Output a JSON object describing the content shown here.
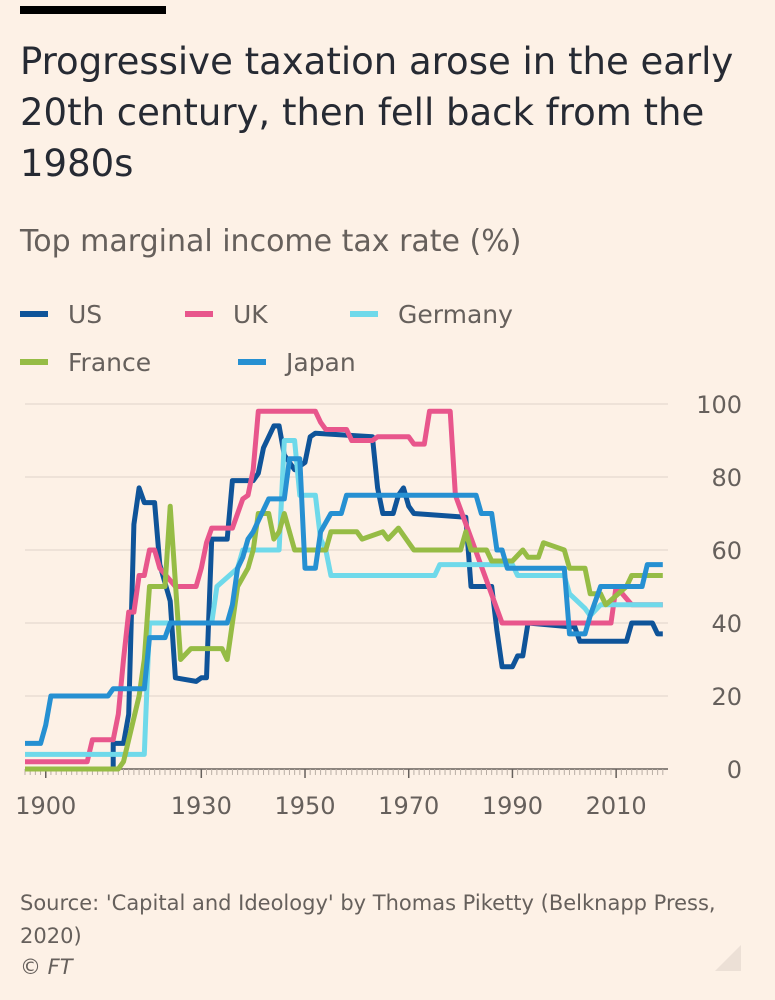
{
  "header": {
    "title": "Progressive taxation arose in the early 20th century, then fell back from the 1980s",
    "subtitle": "Top marginal income tax rate (%)"
  },
  "legend": [
    {
      "name": "US",
      "color": "#0f5499"
    },
    {
      "name": "UK",
      "color": "#e8568c"
    },
    {
      "name": "Germany",
      "color": "#6fd9ea"
    },
    {
      "name": "France",
      "color": "#96bc45"
    },
    {
      "name": "Japan",
      "color": "#2690d2"
    }
  ],
  "footer": {
    "source": "Source: 'Capital and Ideology' by Thomas Piketty (Belknapp Press, 2020)",
    "copyright": "© FT"
  },
  "chart_data": {
    "type": "line",
    "title": "Top marginal income tax rate (%)",
    "xlabel": "",
    "ylabel": "",
    "xlim": [
      1896,
      2020
    ],
    "ylim": [
      0,
      100
    ],
    "x_ticks": [
      1900,
      1930,
      1950,
      1970,
      1990,
      2010
    ],
    "y_ticks": [
      0,
      20,
      40,
      60,
      80,
      100
    ],
    "grid": true,
    "y_axis_side": "right",
    "series": [
      {
        "name": "US",
        "color": "#0f5499",
        "points": [
          [
            1896,
            0
          ],
          [
            1913,
            0
          ],
          [
            1913,
            7
          ],
          [
            1915,
            7
          ],
          [
            1916,
            15
          ],
          [
            1917,
            67
          ],
          [
            1918,
            77
          ],
          [
            1919,
            73
          ],
          [
            1921,
            73
          ],
          [
            1922,
            56
          ],
          [
            1924,
            46
          ],
          [
            1925,
            25
          ],
          [
            1929,
            24
          ],
          [
            1930,
            25
          ],
          [
            1931,
            25
          ],
          [
            1932,
            63
          ],
          [
            1935,
            63
          ],
          [
            1936,
            79
          ],
          [
            1940,
            79
          ],
          [
            1941,
            81
          ],
          [
            1942,
            88
          ],
          [
            1944,
            94
          ],
          [
            1945,
            94
          ],
          [
            1946,
            86
          ],
          [
            1948,
            82
          ],
          [
            1950,
            84
          ],
          [
            1951,
            91
          ],
          [
            1952,
            92
          ],
          [
            1963,
            91
          ],
          [
            1964,
            77
          ],
          [
            1965,
            70
          ],
          [
            1967,
            70
          ],
          [
            1968,
            75
          ],
          [
            1969,
            77
          ],
          [
            1970,
            72
          ],
          [
            1971,
            70
          ],
          [
            1981,
            69
          ],
          [
            1982,
            50
          ],
          [
            1986,
            50
          ],
          [
            1987,
            38
          ],
          [
            1988,
            28
          ],
          [
            1990,
            28
          ],
          [
            1991,
            31
          ],
          [
            1992,
            31
          ],
          [
            1993,
            40
          ],
          [
            2001,
            39
          ],
          [
            2002,
            39
          ],
          [
            2003,
            35
          ],
          [
            2012,
            35
          ],
          [
            2013,
            40
          ],
          [
            2017,
            40
          ],
          [
            2018,
            37
          ],
          [
            2019,
            37
          ]
        ]
      },
      {
        "name": "UK",
        "color": "#e8568c",
        "points": [
          [
            1896,
            2
          ],
          [
            1908,
            2
          ],
          [
            1909,
            8
          ],
          [
            1913,
            8
          ],
          [
            1914,
            15
          ],
          [
            1915,
            30
          ],
          [
            1916,
            43
          ],
          [
            1917,
            43
          ],
          [
            1918,
            53
          ],
          [
            1919,
            53
          ],
          [
            1920,
            60
          ],
          [
            1921,
            60
          ],
          [
            1922,
            55
          ],
          [
            1925,
            50
          ],
          [
            1929,
            50
          ],
          [
            1930,
            55
          ],
          [
            1931,
            62
          ],
          [
            1932,
            66
          ],
          [
            1936,
            66
          ],
          [
            1937,
            70
          ],
          [
            1938,
            74
          ],
          [
            1939,
            75
          ],
          [
            1940,
            82
          ],
          [
            1941,
            98
          ],
          [
            1952,
            98
          ],
          [
            1953,
            95
          ],
          [
            1954,
            93
          ],
          [
            1958,
            93
          ],
          [
            1959,
            90
          ],
          [
            1963,
            90
          ],
          [
            1964,
            91
          ],
          [
            1970,
            91
          ],
          [
            1971,
            89
          ],
          [
            1973,
            89
          ],
          [
            1974,
            98
          ],
          [
            1978,
            98
          ],
          [
            1979,
            75
          ],
          [
            1988,
            40
          ],
          [
            2009,
            40
          ],
          [
            2010,
            50
          ],
          [
            2013,
            45
          ],
          [
            2019,
            45
          ]
        ]
      },
      {
        "name": "Germany",
        "color": "#6fd9ea",
        "points": [
          [
            1896,
            4
          ],
          [
            1914,
            4
          ],
          [
            1915,
            4
          ],
          [
            1919,
            4
          ],
          [
            1920,
            40
          ],
          [
            1932,
            40
          ],
          [
            1933,
            50
          ],
          [
            1937,
            55
          ],
          [
            1938,
            60
          ],
          [
            1945,
            60
          ],
          [
            1946,
            90
          ],
          [
            1948,
            90
          ],
          [
            1949,
            75
          ],
          [
            1952,
            75
          ],
          [
            1953,
            63
          ],
          [
            1954,
            60
          ],
          [
            1955,
            53
          ],
          [
            1975,
            53
          ],
          [
            1976,
            56
          ],
          [
            1990,
            56
          ],
          [
            1991,
            53
          ],
          [
            2000,
            53
          ],
          [
            2001,
            48
          ],
          [
            2004,
            44
          ],
          [
            2005,
            42
          ],
          [
            2007,
            45
          ],
          [
            2019,
            45
          ]
        ]
      },
      {
        "name": "France",
        "color": "#96bc45",
        "points": [
          [
            1896,
            0
          ],
          [
            1914,
            0
          ],
          [
            1915,
            2
          ],
          [
            1918,
            20
          ],
          [
            1919,
            30
          ],
          [
            1920,
            50
          ],
          [
            1923,
            50
          ],
          [
            1924,
            72
          ],
          [
            1926,
            30
          ],
          [
            1928,
            33
          ],
          [
            1934,
            33
          ],
          [
            1935,
            30
          ],
          [
            1936,
            40
          ],
          [
            1937,
            50
          ],
          [
            1939,
            55
          ],
          [
            1940,
            60
          ],
          [
            1941,
            70
          ],
          [
            1943,
            70
          ],
          [
            1944,
            63
          ],
          [
            1945,
            65
          ],
          [
            1946,
            70
          ],
          [
            1948,
            60
          ],
          [
            1954,
            60
          ],
          [
            1955,
            65
          ],
          [
            1960,
            65
          ],
          [
            1961,
            63
          ],
          [
            1965,
            65
          ],
          [
            1966,
            63
          ],
          [
            1968,
            66
          ],
          [
            1970,
            62
          ],
          [
            1971,
            60
          ],
          [
            1980,
            60
          ],
          [
            1981,
            65
          ],
          [
            1982,
            60
          ],
          [
            1985,
            60
          ],
          [
            1986,
            57
          ],
          [
            1990,
            57
          ],
          [
            1992,
            60
          ],
          [
            1993,
            58
          ],
          [
            1995,
            58
          ],
          [
            1996,
            62
          ],
          [
            1998,
            61
          ],
          [
            2000,
            60
          ],
          [
            2001,
            55
          ],
          [
            2004,
            55
          ],
          [
            2005,
            48
          ],
          [
            2007,
            48
          ],
          [
            2008,
            45
          ],
          [
            2012,
            50
          ],
          [
            2013,
            53
          ],
          [
            2019,
            53
          ]
        ]
      },
      {
        "name": "Japan",
        "color": "#2690d2",
        "points": [
          [
            1896,
            7
          ],
          [
            1899,
            7
          ],
          [
            1900,
            12
          ],
          [
            1901,
            20
          ],
          [
            1912,
            20
          ],
          [
            1913,
            22
          ],
          [
            1919,
            22
          ],
          [
            1920,
            36
          ],
          [
            1923,
            36
          ],
          [
            1924,
            40
          ],
          [
            1935,
            40
          ],
          [
            1936,
            45
          ],
          [
            1937,
            55
          ],
          [
            1938,
            58
          ],
          [
            1939,
            63
          ],
          [
            1940,
            65
          ],
          [
            1941,
            68
          ],
          [
            1943,
            74
          ],
          [
            1946,
            74
          ],
          [
            1947,
            85
          ],
          [
            1949,
            85
          ],
          [
            1950,
            55
          ],
          [
            1952,
            55
          ],
          [
            1953,
            65
          ],
          [
            1955,
            70
          ],
          [
            1957,
            70
          ],
          [
            1958,
            75
          ],
          [
            1983,
            75
          ],
          [
            1984,
            70
          ],
          [
            1986,
            70
          ],
          [
            1987,
            60
          ],
          [
            1988,
            60
          ],
          [
            1989,
            55
          ],
          [
            2000,
            55
          ],
          [
            2001,
            37
          ],
          [
            2004,
            37
          ],
          [
            2005,
            42
          ],
          [
            2007,
            50
          ],
          [
            2015,
            50
          ],
          [
            2016,
            56
          ],
          [
            2019,
            56
          ]
        ]
      }
    ]
  }
}
